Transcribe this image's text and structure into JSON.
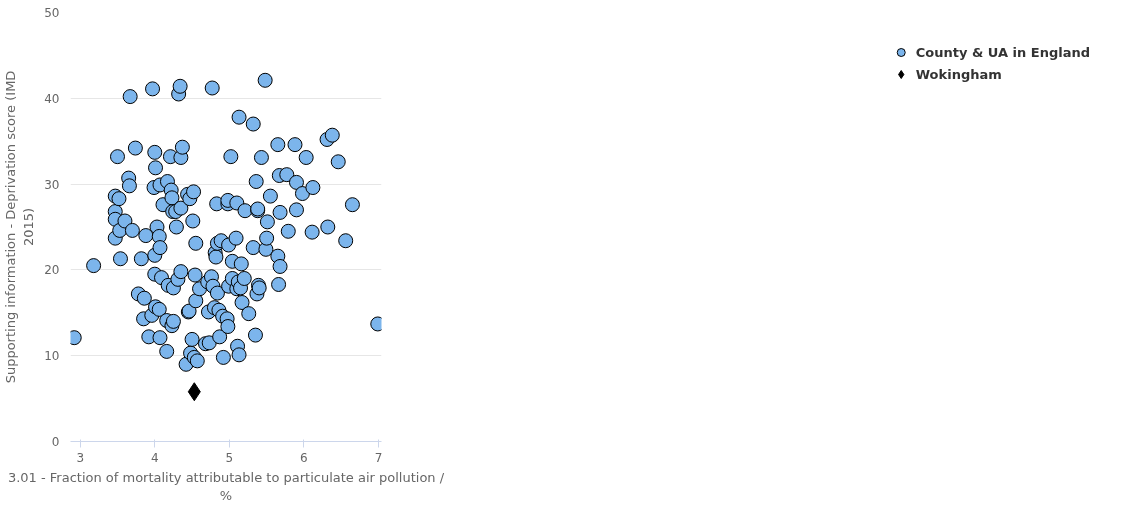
{
  "chart_data": {
    "type": "scatter",
    "xlabel": "3.01 - Fraction of mortality attributable to particulate air pollution /\n%",
    "ylabel": "Supporting information - Deprivation score (IMD\n2015)",
    "xlim": [
      2.87,
      7.04
    ],
    "xticks": [
      3,
      4,
      5,
      6,
      7
    ],
    "ylim": [
      0,
      50
    ],
    "yticks": [
      0,
      10,
      20,
      30,
      40,
      50
    ],
    "grid": "y",
    "legend": "right",
    "series": [
      {
        "name": "County & UA in England",
        "color": "#7cb5ec",
        "marker": "circle",
        "x": [
          2.92,
          3.18,
          3.47,
          3.47,
          3.47,
          3.47,
          3.5,
          3.52,
          3.53,
          3.54,
          3.6,
          3.65,
          3.66,
          3.67,
          3.7,
          3.74,
          3.78,
          3.82,
          3.85,
          3.86,
          3.88,
          3.92,
          3.96,
          3.97,
          3.99,
          4.0,
          4.0,
          4.0,
          4.01,
          4.01,
          4.03,
          4.06,
          4.06,
          4.07,
          4.07,
          4.07,
          4.09,
          4.11,
          4.16,
          4.16,
          4.17,
          4.18,
          4.21,
          4.22,
          4.23,
          4.23,
          4.24,
          4.25,
          4.25,
          4.28,
          4.29,
          4.31,
          4.32,
          4.34,
          4.35,
          4.35,
          4.35,
          4.37,
          4.42,
          4.44,
          4.45,
          4.46,
          4.47,
          4.48,
          4.5,
          4.51,
          4.52,
          4.53,
          4.54,
          4.55,
          4.55,
          4.57,
          4.6,
          4.68,
          4.71,
          4.72,
          4.73,
          4.76,
          4.77,
          4.78,
          4.8,
          4.81,
          4.82,
          4.83,
          4.84,
          4.84,
          4.86,
          4.87,
          4.89,
          4.91,
          4.92,
          4.97,
          4.98,
          4.98,
          4.98,
          4.99,
          4.99,
          5.02,
          5.04,
          5.04,
          5.09,
          5.1,
          5.1,
          5.11,
          5.12,
          5.13,
          5.13,
          5.15,
          5.16,
          5.17,
          5.2,
          5.21,
          5.26,
          5.32,
          5.32,
          5.35,
          5.36,
          5.37,
          5.38,
          5.38,
          5.39,
          5.4,
          5.43,
          5.48,
          5.49,
          5.5,
          5.51,
          5.55,
          5.65,
          5.65,
          5.66,
          5.67,
          5.68,
          5.68,
          5.77,
          5.79,
          5.88,
          5.9,
          5.9,
          5.98,
          6.03,
          6.11,
          6.12,
          6.31,
          6.32,
          6.38,
          6.46,
          6.56,
          6.65,
          6.99
        ],
        "values": [
          12.1,
          20.5,
          28.6,
          26.8,
          25.9,
          23.7,
          33.2,
          28.3,
          24.6,
          21.3,
          25.7,
          30.7,
          29.8,
          40.2,
          24.6,
          34.2,
          17.2,
          21.3,
          14.3,
          16.7,
          24.0,
          12.2,
          14.7,
          41.1,
          29.6,
          33.7,
          19.5,
          21.7,
          15.7,
          31.9,
          25.0,
          23.9,
          15.4,
          12.1,
          22.6,
          29.9,
          19.1,
          27.6,
          14.1,
          10.5,
          30.3,
          18.2,
          33.2,
          29.3,
          28.4,
          13.5,
          26.8,
          17.9,
          14.0,
          26.8,
          25.0,
          18.9,
          40.5,
          41.4,
          33.1,
          19.8,
          27.2,
          34.3,
          9.0,
          28.8,
          15.1,
          15.2,
          28.3,
          10.3,
          11.9,
          25.7,
          29.1,
          9.8,
          19.4,
          16.4,
          23.1,
          9.4,
          17.8,
          11.4,
          18.6,
          15.1,
          11.5,
          19.2,
          41.2,
          18.1,
          15.6,
          22.0,
          21.5,
          27.7,
          23.1,
          17.3,
          15.3,
          12.2,
          23.4,
          14.6,
          9.8,
          14.3,
          13.4,
          27.7,
          28.1,
          18.1,
          22.9,
          33.2,
          21.0,
          19.0,
          23.7,
          27.8,
          17.8,
          11.1,
          18.6,
          10.1,
          37.8,
          17.9,
          20.7,
          16.2,
          19.0,
          26.9,
          14.9,
          37.0,
          22.6,
          12.4,
          30.3,
          17.2,
          26.9,
          27.1,
          18.2,
          17.9,
          33.1,
          42.1,
          22.4,
          23.7,
          25.6,
          28.6,
          34.6,
          21.6,
          18.3,
          31.0,
          20.4,
          26.7,
          31.1,
          24.5,
          34.6,
          30.2,
          27.0,
          28.9,
          33.1,
          24.4,
          29.6,
          35.2,
          25.0,
          35.7,
          32.6,
          23.4,
          27.6,
          13.7
        ]
      },
      {
        "name": "Wokingham",
        "color": "#000000",
        "marker": "diamond",
        "x": [
          4.53
        ],
        "values": [
          5.8
        ]
      }
    ]
  }
}
